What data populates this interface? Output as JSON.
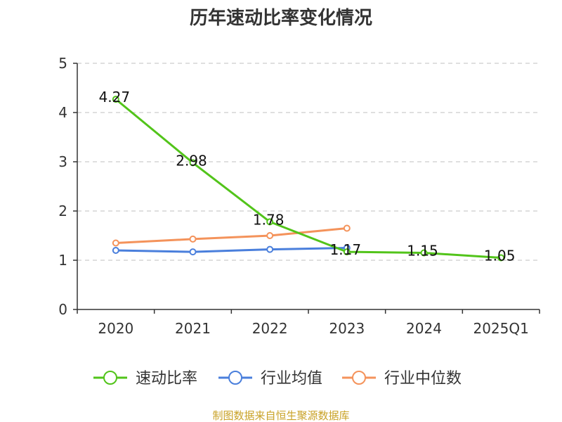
{
  "chart_data": {
    "type": "line",
    "title": "历年速动比率变化情况",
    "categories": [
      "2020",
      "2021",
      "2022",
      "2023",
      "2024",
      "2025Q1"
    ],
    "ylim": [
      0,
      5
    ],
    "yticks": [
      0,
      1,
      2,
      3,
      4,
      5
    ],
    "grid": true,
    "legend_position": "bottom",
    "series": [
      {
        "name": "速动比率",
        "color": "#52c41a",
        "values": [
          4.27,
          2.98,
          1.78,
          1.17,
          1.15,
          1.05
        ],
        "labels": [
          "4.27",
          "2.98",
          "1.78",
          "1.17",
          "1.15",
          "1.05"
        ],
        "show_labels": true
      },
      {
        "name": "行业均值",
        "color": "#4a7fdc",
        "values": [
          1.2,
          1.17,
          1.22,
          1.25,
          null,
          null
        ],
        "show_labels": false
      },
      {
        "name": "行业中位数",
        "color": "#f4935b",
        "values": [
          1.35,
          1.43,
          1.5,
          1.65,
          null,
          null
        ],
        "show_labels": false
      }
    ]
  },
  "source_text": "制图数据来自恒生聚源数据库"
}
